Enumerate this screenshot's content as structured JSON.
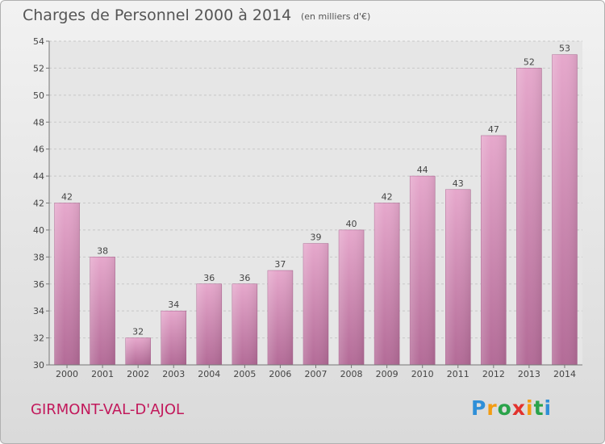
{
  "page": {
    "title": "Charges de Personnel 2000 à 2014",
    "subtitle": "(en milliers d'€)",
    "commune": "GIRMONT-VAL-D'AJOL",
    "logo": {
      "letters": [
        "P",
        "r",
        "o",
        "x",
        "i",
        "t",
        "i"
      ],
      "colors": [
        "#2f8fd8",
        "#f39c12",
        "#2aa34a",
        "#e2322d",
        "#f39c12",
        "#2aa34a",
        "#2f8fd8"
      ]
    }
  },
  "chart_data": {
    "type": "bar",
    "title": "Charges de Personnel 2000 à 2014",
    "subtitle": "(en milliers d'€)",
    "categories": [
      "2000",
      "2001",
      "2002",
      "2003",
      "2004",
      "2005",
      "2006",
      "2007",
      "2008",
      "2009",
      "2010",
      "2011",
      "2012",
      "2013",
      "2014"
    ],
    "values": [
      42,
      38,
      32,
      34,
      36,
      36,
      37,
      39,
      40,
      42,
      44,
      43,
      47,
      52,
      53
    ],
    "ylim": [
      30,
      54
    ],
    "yticks": [
      30,
      32,
      34,
      36,
      38,
      40,
      42,
      44,
      46,
      48,
      50,
      52,
      54
    ],
    "grid": true,
    "bar_color": "#d98cb7",
    "data_labels": true
  }
}
